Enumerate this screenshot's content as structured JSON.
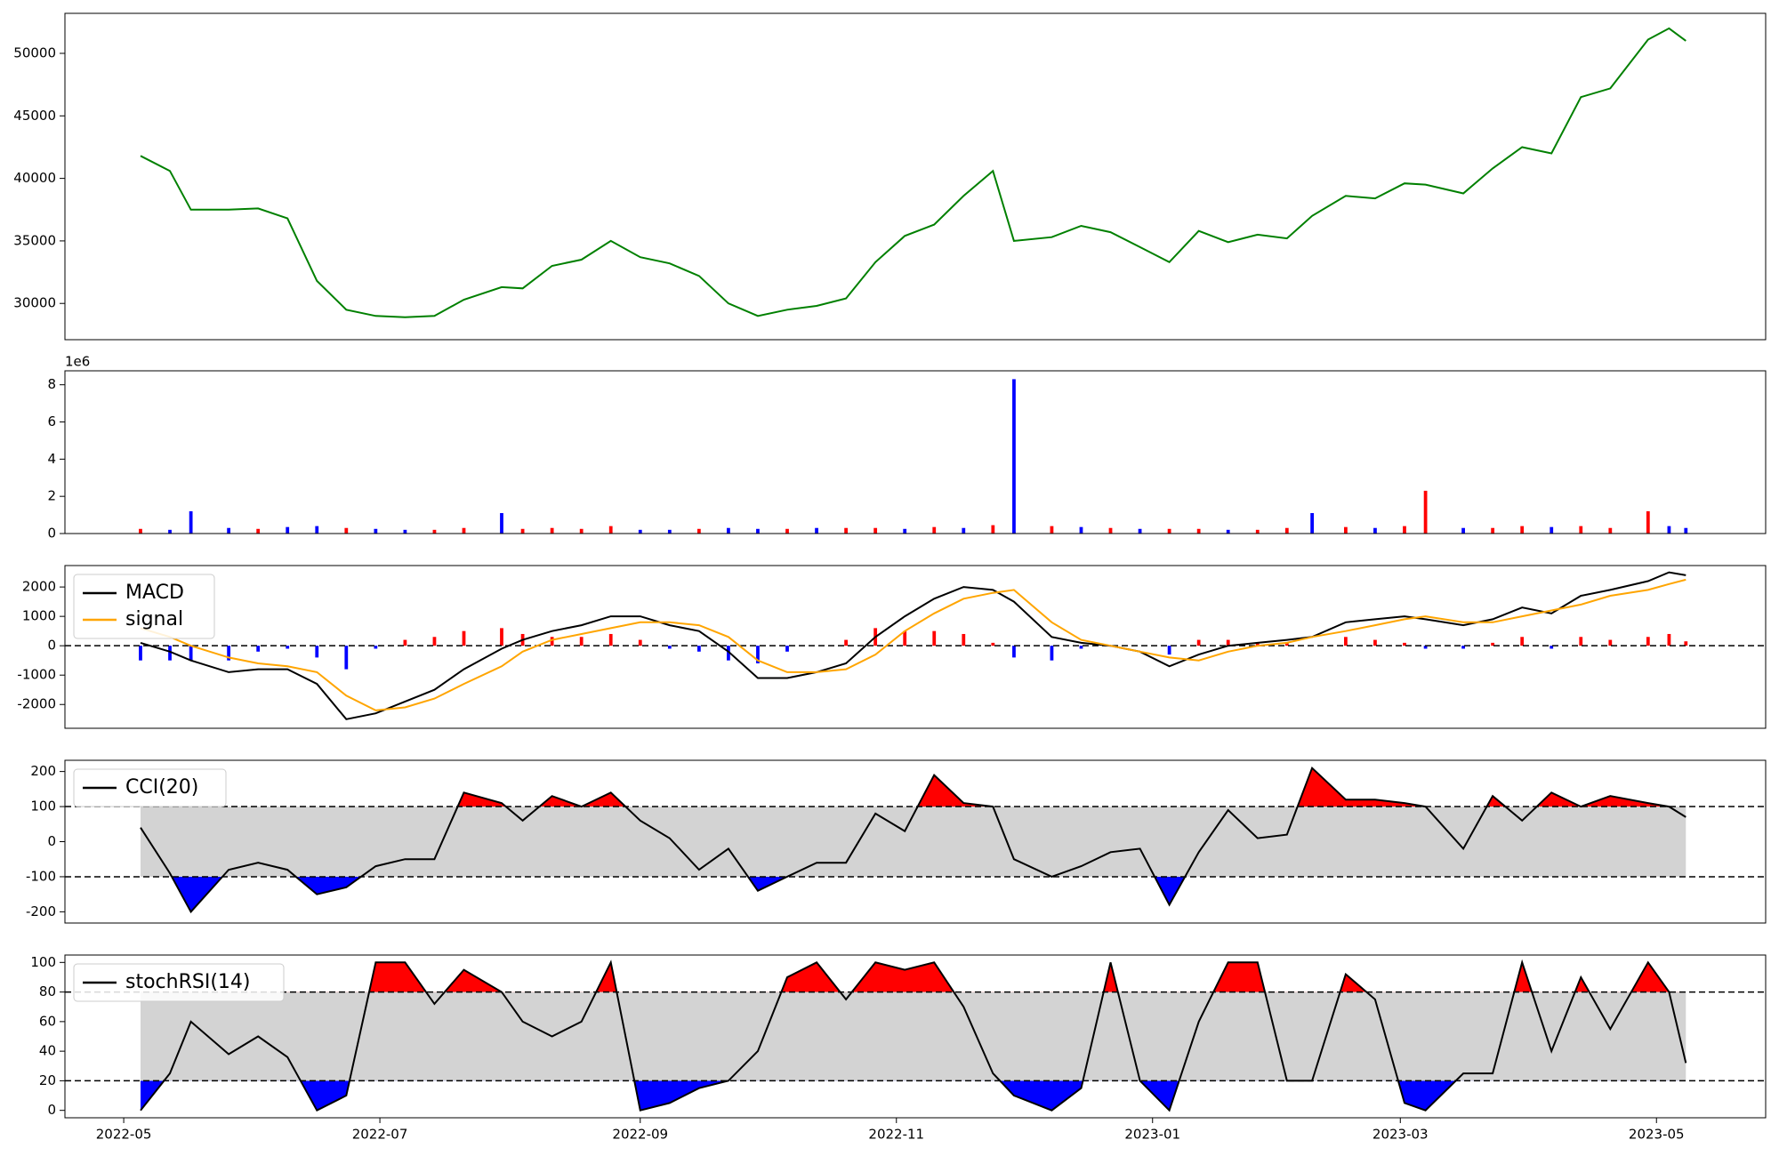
{
  "chart_data": {
    "type": "stock-indicators",
    "x": [
      4,
      11,
      16,
      25,
      32,
      39,
      46,
      53,
      60,
      67,
      74,
      81,
      90,
      95,
      102,
      109,
      116,
      123,
      130,
      137,
      144,
      151,
      158,
      165,
      172,
      179,
      186,
      193,
      200,
      207,
      212,
      221,
      228,
      235,
      242,
      249,
      256,
      263,
      270,
      277,
      283,
      291,
      298,
      305,
      310,
      319,
      326,
      333,
      340,
      347,
      354,
      363,
      368,
      372
    ],
    "xlim": [
      -14,
      391
    ],
    "xticks": [
      {
        "value": 0,
        "label": "2022-05"
      },
      {
        "value": 61,
        "label": "2022-07"
      },
      {
        "value": 123,
        "label": "2022-09"
      },
      {
        "value": 184,
        "label": "2022-11"
      },
      {
        "value": 245,
        "label": "2023-01"
      },
      {
        "value": 304,
        "label": "2023-03"
      },
      {
        "value": 365,
        "label": "2023-05"
      }
    ],
    "panels": [
      {
        "type": "line",
        "ylim": [
          27100,
          53200
        ],
        "yticks": [
          30000,
          35000,
          40000,
          45000,
          50000
        ],
        "series": [
          {
            "color": "green",
            "values": [
              41800,
              40600,
              37500,
              37500,
              37600,
              36800,
              31800,
              29500,
              29000,
              28900,
              29000,
              30300,
              31300,
              31200,
              33000,
              33500,
              35000,
              33700,
              33200,
              32200,
              30000,
              29000,
              29500,
              29800,
              30400,
              33300,
              35400,
              36300,
              38600,
              40600,
              35000,
              35300,
              36200,
              35700,
              34500,
              33300,
              35800,
              34900,
              35500,
              35200,
              37000,
              38600,
              38400,
              39600,
              39500,
              38800,
              40800,
              42500,
              42000,
              46500,
              47200,
              51100,
              52000,
              51000
            ]
          }
        ]
      },
      {
        "type": "bar",
        "ylim": [
          0,
          8750000
        ],
        "offset_label": "1e6",
        "yticks": [
          {
            "value": 0,
            "label": "0"
          },
          {
            "value": 2000000,
            "label": "2"
          },
          {
            "value": 4000000,
            "label": "4"
          },
          {
            "value": 6000000,
            "label": "6"
          },
          {
            "value": 8000000,
            "label": "8"
          }
        ],
        "values": [
          250000,
          200000,
          1200000,
          300000,
          250000,
          350000,
          400000,
          300000,
          250000,
          200000,
          200000,
          300000,
          1100000,
          250000,
          300000,
          250000,
          400000,
          200000,
          200000,
          250000,
          300000,
          250000,
          250000,
          300000,
          300000,
          300000,
          250000,
          350000,
          300000,
          450000,
          8300000,
          400000,
          350000,
          300000,
          250000,
          250000,
          250000,
          200000,
          200000,
          300000,
          1100000,
          350000,
          300000,
          400000,
          2300000,
          300000,
          300000,
          400000,
          350000,
          400000,
          300000,
          1200000,
          400000,
          300000
        ],
        "colors": [
          "red",
          "blue",
          "blue",
          "blue",
          "red",
          "blue",
          "blue",
          "red",
          "blue",
          "blue",
          "red",
          "red",
          "blue",
          "red",
          "red",
          "red",
          "red",
          "blue",
          "blue",
          "red",
          "blue",
          "blue",
          "red",
          "blue",
          "red",
          "red",
          "blue",
          "red",
          "blue",
          "red",
          "blue",
          "red",
          "blue",
          "red",
          "blue",
          "red",
          "red",
          "blue",
          "red",
          "red",
          "blue",
          "red",
          "blue",
          "red",
          "red",
          "blue",
          "red",
          "red",
          "blue",
          "red",
          "red",
          "red",
          "blue",
          "blue"
        ]
      },
      {
        "type": "macd",
        "ylim": [
          -2810,
          2730
        ],
        "yticks": [
          -2000,
          -1000,
          0,
          1000,
          2000
        ],
        "hlines": [
          0
        ],
        "legend": "upper left",
        "series": [
          {
            "name": "MACD",
            "color": "black",
            "values": [
              100,
              -200,
              -500,
              -900,
              -800,
              -800,
              -1300,
              -2500,
              -2300,
              -1900,
              -1500,
              -800,
              -100,
              200,
              500,
              700,
              1000,
              1000,
              700,
              500,
              -200,
              -1100,
              -1100,
              -900,
              -600,
              300,
              1000,
              1600,
              2000,
              1900,
              1500,
              300,
              100,
              0,
              -200,
              -700,
              -300,
              0,
              100,
              200,
              300,
              800,
              900,
              1000,
              900,
              700,
              900,
              1300,
              1100,
              1700,
              1900,
              2200,
              2500,
              2400
            ]
          },
          {
            "name": "signal",
            "color": "orange",
            "values": [
              600,
              300,
              0,
              -400,
              -600,
              -700,
              -900,
              -1700,
              -2200,
              -2100,
              -1800,
              -1300,
              -700,
              -200,
              200,
              400,
              600,
              800,
              800,
              700,
              300,
              -500,
              -900,
              -900,
              -800,
              -300,
              500,
              1100,
              1600,
              1800,
              1900,
              800,
              200,
              0,
              -200,
              -400,
              -500,
              -200,
              0,
              100,
              300,
              500,
              700,
              900,
              1000,
              800,
              800,
              1000,
              1200,
              1400,
              1700,
              1900,
              2100,
              2250
            ]
          }
        ],
        "hist": {
          "pos_color": "red",
          "neg_color": "blue",
          "values": [
            -500,
            -500,
            -500,
            -500,
            -200,
            -100,
            -400,
            -800,
            -100,
            200,
            300,
            500,
            600,
            400,
            300,
            300,
            400,
            200,
            -100,
            -200,
            -500,
            -600,
            -200,
            0,
            200,
            600,
            500,
            500,
            400,
            100,
            -400,
            -500,
            -100,
            0,
            0,
            -300,
            200,
            200,
            100,
            100,
            0,
            300,
            200,
            100,
            -100,
            -100,
            100,
            300,
            -100,
            300,
            200,
            300,
            400,
            150
          ]
        }
      },
      {
        "type": "band",
        "ylim": [
          -232,
          232
        ],
        "yticks": [
          -200,
          -100,
          0,
          100,
          200
        ],
        "levels": [
          -100,
          100
        ],
        "legend": "upper left",
        "band_color": "lightgray",
        "upper_color": "red",
        "lower_color": "blue",
        "series": [
          {
            "name": "CCI(20)",
            "color": "black",
            "values": [
              40,
              -90,
              -200,
              -80,
              -60,
              -80,
              -150,
              -130,
              -70,
              -50,
              -50,
              140,
              110,
              60,
              130,
              100,
              140,
              60,
              10,
              -80,
              -20,
              -140,
              -100,
              -60,
              -60,
              80,
              30,
              190,
              110,
              100,
              -50,
              -100,
              -70,
              -30,
              -20,
              -180,
              -30,
              90,
              10,
              20,
              210,
              120,
              120,
              110,
              100,
              -20,
              130,
              60,
              140,
              100,
              130,
              110,
              100,
              70
            ]
          }
        ]
      },
      {
        "type": "band",
        "ylim": [
          -5,
          105
        ],
        "yticks": [
          0,
          20,
          40,
          60,
          80,
          100
        ],
        "levels": [
          20,
          80
        ],
        "legend": "upper left",
        "band_color": "lightgray",
        "upper_color": "red",
        "lower_color": "blue",
        "series": [
          {
            "name": "stochRSI(14)",
            "color": "black",
            "values": [
              0,
              25,
              60,
              38,
              50,
              36,
              0,
              10,
              100,
              100,
              72,
              95,
              80,
              60,
              50,
              60,
              100,
              0,
              5,
              15,
              20,
              40,
              90,
              100,
              75,
              100,
              95,
              100,
              70,
              25,
              10,
              0,
              15,
              100,
              20,
              0,
              60,
              100,
              100,
              20,
              20,
              92,
              75,
              5,
              0,
              25,
              25,
              100,
              40,
              90,
              55,
              100,
              80,
              32
            ]
          }
        ]
      }
    ]
  }
}
